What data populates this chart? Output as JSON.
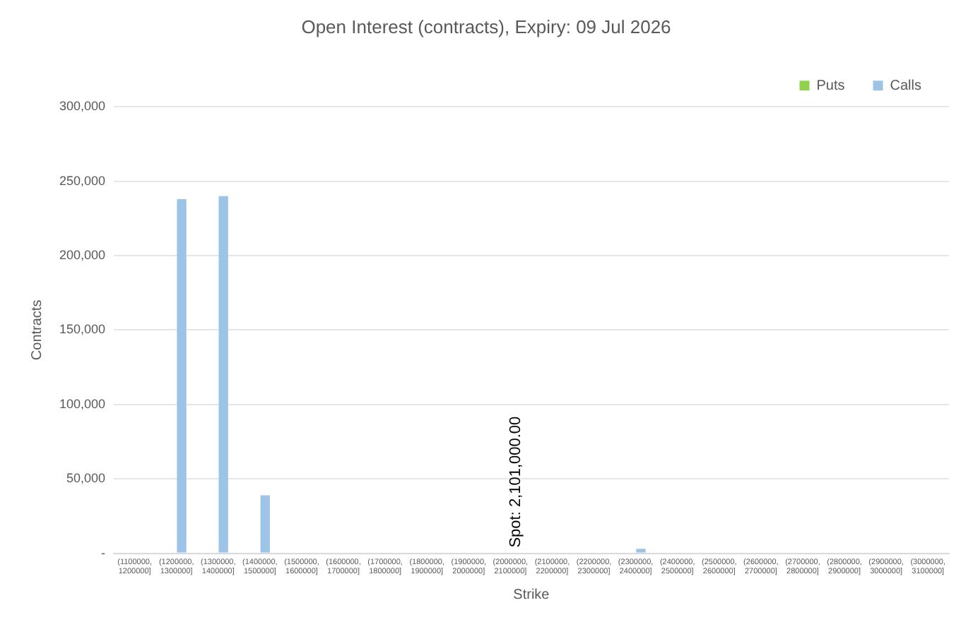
{
  "chart_data": {
    "type": "bar",
    "title": "Open Interest (contracts), Expiry: 09 Jul 2026",
    "xlabel": "Strike",
    "ylabel": "Contracts",
    "categories": [
      "(1100000, 1200000]",
      "(1200000, 1300000]",
      "(1300000, 1400000]",
      "(1400000, 1500000]",
      "(1500000, 1600000]",
      "(1600000, 1700000]",
      "(1700000, 1800000]",
      "(1800000, 1900000]",
      "(1900000, 2000000]",
      "(2000000, 2100000]",
      "(2100000, 2200000]",
      "(2200000, 2300000]",
      "(2300000, 2400000]",
      "(2400000, 2500000]",
      "(2500000, 2600000]",
      "(2600000, 2700000]",
      "(2700000, 2800000]",
      "(2800000, 2900000]",
      "(2900000, 3000000]",
      "(3000000, 3100000]"
    ],
    "series": [
      {
        "name": "Puts",
        "color": "#92d050",
        "values": [
          0,
          0,
          0,
          0,
          0,
          0,
          0,
          0,
          0,
          0,
          0,
          0,
          0,
          0,
          0,
          0,
          0,
          0,
          0,
          0
        ]
      },
      {
        "name": "Calls",
        "color": "#9dc3e6",
        "values": [
          null,
          238000,
          240000,
          39000,
          0,
          0,
          0,
          0,
          null,
          0,
          0,
          null,
          3000,
          0,
          0,
          0,
          0,
          0,
          0,
          0
        ]
      }
    ],
    "ylim": [
      0,
      300000
    ],
    "yticks": [
      {
        "value": 0,
        "label": "-"
      },
      {
        "value": 50000,
        "label": "50,000"
      },
      {
        "value": 100000,
        "label": "100,000"
      },
      {
        "value": 150000,
        "label": "150,000"
      },
      {
        "value": 200000,
        "label": "200,000"
      },
      {
        "value": 250000,
        "label": "250,000"
      },
      {
        "value": 300000,
        "label": "300,000"
      }
    ],
    "grid": "y",
    "legend": "top right",
    "annotations": [
      {
        "text": "Spot: 2,101,000.00",
        "x": "(2000000, 2100000]",
        "y": 0
      }
    ]
  }
}
